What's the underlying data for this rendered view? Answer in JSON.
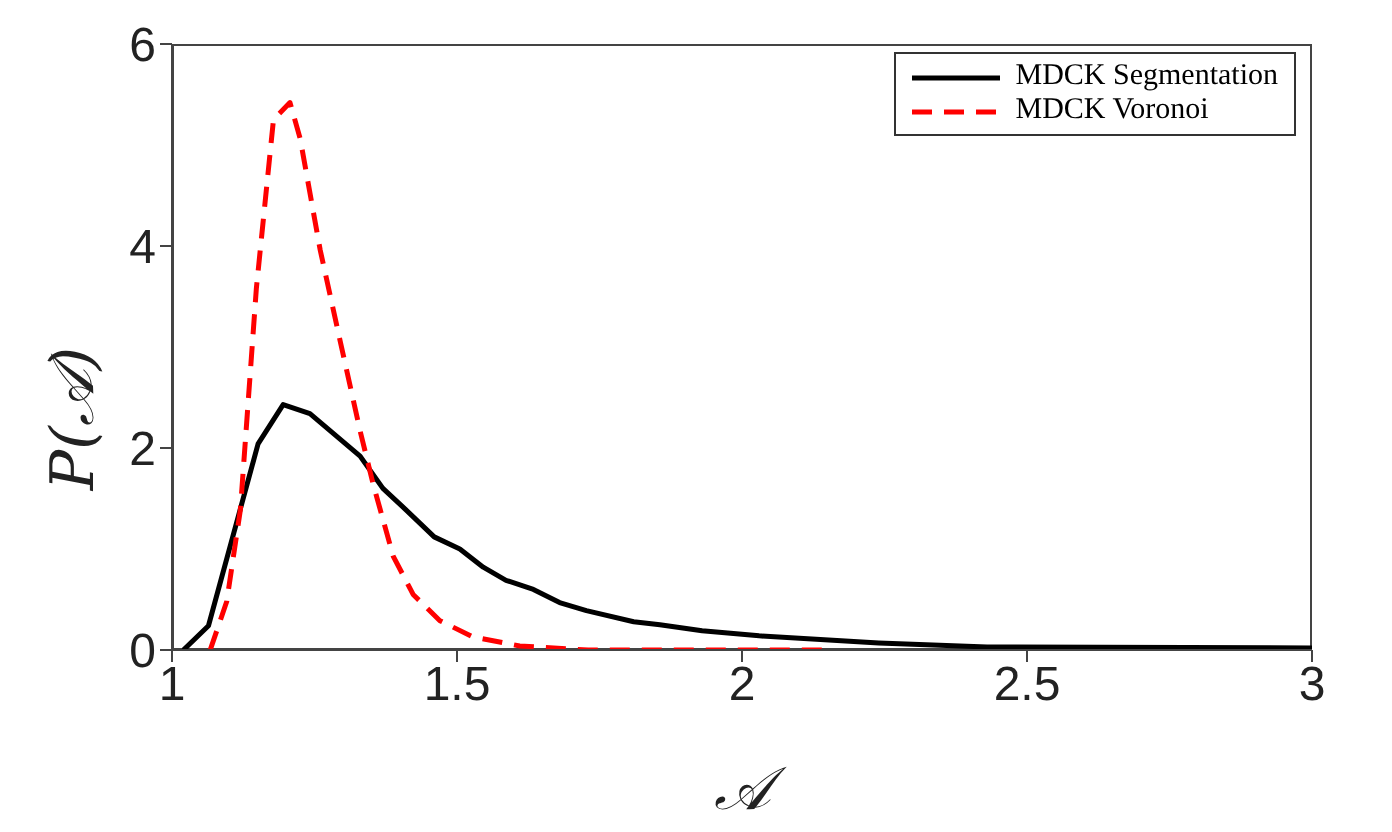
{
  "chart_data": {
    "type": "line",
    "xlabel": "𝒜",
    "ylabel": "P(𝒜)",
    "xlim": [
      1,
      3
    ],
    "xticks": [
      1,
      1.5,
      2,
      2.5,
      3
    ],
    "ylim": [
      0,
      6
    ],
    "yticks": [
      0,
      2,
      4,
      6
    ],
    "grid": false,
    "legend": "top right",
    "marker": "none",
    "series": [
      {
        "name": "MDCK Segmentation",
        "color": "#000000",
        "line_style": "solid",
        "x": [
          1.02,
          1.064,
          1.151,
          1.195,
          1.242,
          1.33,
          1.37,
          1.41,
          1.46,
          1.505,
          1.546,
          1.586,
          1.634,
          1.68,
          1.727,
          1.81,
          1.856,
          1.93,
          2.03,
          2.24,
          2.43,
          3
        ],
        "values": [
          0,
          0.24,
          2.04,
          2.43,
          2.34,
          1.92,
          1.6,
          1.39,
          1.12,
          1,
          0.82,
          0.69,
          0.6,
          0.47,
          0.39,
          0.28,
          0.25,
          0.19,
          0.14,
          0.07,
          0.03,
          0.02
        ]
      },
      {
        "name": "MDCK Voronoi",
        "color": "#ff0000",
        "line_style": "dashed",
        "x": [
          1.067,
          1.096,
          1.12,
          1.148,
          1.178,
          1.207,
          1.225,
          1.26,
          1.295,
          1.33,
          1.353,
          1.388,
          1.423,
          1.47,
          1.528,
          1.61,
          1.73,
          2.15
        ],
        "values": [
          0,
          0.48,
          1.39,
          3.58,
          5.25,
          5.42,
          5.06,
          3.96,
          3.06,
          2.17,
          1.64,
          0.93,
          0.55,
          0.29,
          0.13,
          0.04,
          0,
          0
        ]
      }
    ]
  }
}
